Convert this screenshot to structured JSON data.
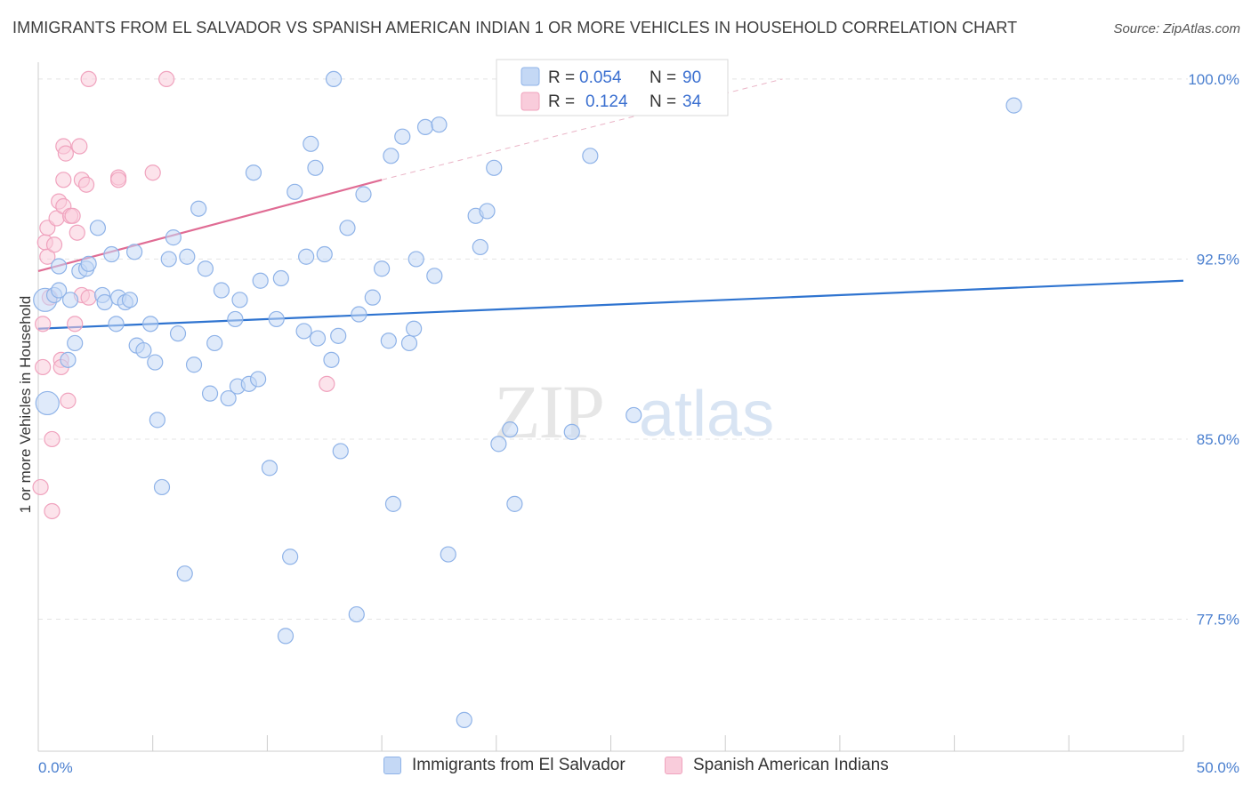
{
  "title": "IMMIGRANTS FROM EL SALVADOR VS SPANISH AMERICAN INDIAN 1 OR MORE VEHICLES IN HOUSEHOLD CORRELATION CHART",
  "source": "Source: ZipAtlas.com",
  "watermark": {
    "zip": "ZIP",
    "atlas": "atlas"
  },
  "chart_data": {
    "type": "scatter",
    "xlabel": "",
    "ylabel": "1 or more Vehicles in Household",
    "xlim": [
      0,
      50
    ],
    "ylim": [
      72.0,
      100.7
    ],
    "x_tick_labels": {
      "left": "0.0%",
      "right": "50.0%"
    },
    "y_ticks": [
      77.5,
      85.0,
      92.5,
      100.0
    ],
    "y_tick_labels": [
      "77.5%",
      "85.0%",
      "92.5%",
      "100.0%"
    ],
    "grid": true,
    "legend": {
      "placement": "top-center",
      "rows": [
        {
          "r_label": "R =",
          "r_value": "0.054",
          "n_label": "N =",
          "n_value": "90"
        },
        {
          "r_label": "R =",
          "r_value": "0.124",
          "n_label": "N =",
          "n_value": "34"
        }
      ]
    },
    "series": [
      {
        "name": "Immigrants from El Salvador",
        "color": "#8fb3e8",
        "fill": "#c4d8f5",
        "trend_color": "#2f74d0",
        "trend": {
          "x": [
            0,
            50
          ],
          "y": [
            89.6,
            91.6
          ]
        },
        "trend_dashed": false,
        "points": [
          [
            0.3,
            90.8
          ],
          [
            0.4,
            86.5
          ],
          [
            0.7,
            91.0
          ],
          [
            0.9,
            92.2
          ],
          [
            0.9,
            91.2
          ],
          [
            1.3,
            88.3
          ],
          [
            1.4,
            90.8
          ],
          [
            1.6,
            89.0
          ],
          [
            1.8,
            92.0
          ],
          [
            2.1,
            92.1
          ],
          [
            2.2,
            92.3
          ],
          [
            2.6,
            93.8
          ],
          [
            2.8,
            91.0
          ],
          [
            2.9,
            90.7
          ],
          [
            3.2,
            92.7
          ],
          [
            3.4,
            89.8
          ],
          [
            3.5,
            90.9
          ],
          [
            3.8,
            90.7
          ],
          [
            4.0,
            90.8
          ],
          [
            4.2,
            92.8
          ],
          [
            4.3,
            88.9
          ],
          [
            4.6,
            88.7
          ],
          [
            4.9,
            89.8
          ],
          [
            5.1,
            88.2
          ],
          [
            5.2,
            85.8
          ],
          [
            5.4,
            83.0
          ],
          [
            5.7,
            92.5
          ],
          [
            5.9,
            93.4
          ],
          [
            6.1,
            89.4
          ],
          [
            6.4,
            79.4
          ],
          [
            6.5,
            92.6
          ],
          [
            6.8,
            88.1
          ],
          [
            7.0,
            94.6
          ],
          [
            7.3,
            92.1
          ],
          [
            7.5,
            86.9
          ],
          [
            7.7,
            89.0
          ],
          [
            8.0,
            91.2
          ],
          [
            8.3,
            86.7
          ],
          [
            8.6,
            90.0
          ],
          [
            8.7,
            87.2
          ],
          [
            8.8,
            90.8
          ],
          [
            9.2,
            87.3
          ],
          [
            9.4,
            96.1
          ],
          [
            9.6,
            87.5
          ],
          [
            9.7,
            91.6
          ],
          [
            10.1,
            83.8
          ],
          [
            10.4,
            90.0
          ],
          [
            10.6,
            91.7
          ],
          [
            10.8,
            76.8
          ],
          [
            11.0,
            80.1
          ],
          [
            11.2,
            95.3
          ],
          [
            11.6,
            89.5
          ],
          [
            11.7,
            92.6
          ],
          [
            11.9,
            97.3
          ],
          [
            12.1,
            96.3
          ],
          [
            12.2,
            89.2
          ],
          [
            12.5,
            92.7
          ],
          [
            12.8,
            88.3
          ],
          [
            12.9,
            100.0
          ],
          [
            13.1,
            89.3
          ],
          [
            13.2,
            84.5
          ],
          [
            13.5,
            93.8
          ],
          [
            13.9,
            77.7
          ],
          [
            14.0,
            90.2
          ],
          [
            14.2,
            95.2
          ],
          [
            14.6,
            90.9
          ],
          [
            15.0,
            92.1
          ],
          [
            15.3,
            89.1
          ],
          [
            15.4,
            96.8
          ],
          [
            15.5,
            82.3
          ],
          [
            15.9,
            97.6
          ],
          [
            16.2,
            89.0
          ],
          [
            16.4,
            89.6
          ],
          [
            16.5,
            92.5
          ],
          [
            16.9,
            98.0
          ],
          [
            17.3,
            91.8
          ],
          [
            17.5,
            98.1
          ],
          [
            17.9,
            80.2
          ],
          [
            18.6,
            73.3
          ],
          [
            19.1,
            94.3
          ],
          [
            19.3,
            93.0
          ],
          [
            19.6,
            94.5
          ],
          [
            19.9,
            96.3
          ],
          [
            20.1,
            84.8
          ],
          [
            20.6,
            85.4
          ],
          [
            20.8,
            82.3
          ],
          [
            23.3,
            85.3
          ],
          [
            24.1,
            96.8
          ],
          [
            26.0,
            86.0
          ],
          [
            42.6,
            98.9
          ]
        ],
        "sizes": {
          "large": [
            [
              0.3,
              90.8
            ],
            [
              0.4,
              86.5
            ]
          ]
        }
      },
      {
        "name": "Spanish American Indians",
        "color": "#f0a3be",
        "fill": "#f9ccdb",
        "trend_color": "#e06c94",
        "trend": {
          "x": [
            0,
            15.0
          ],
          "y": [
            92.0,
            95.8
          ]
        },
        "trend_extension": {
          "x": [
            15.0,
            32.5
          ],
          "y": [
            95.8,
            100.0
          ]
        },
        "trend_dashed": true,
        "points": [
          [
            0.1,
            83.0
          ],
          [
            0.2,
            88.0
          ],
          [
            0.2,
            89.8
          ],
          [
            0.3,
            93.2
          ],
          [
            0.4,
            93.8
          ],
          [
            0.4,
            92.6
          ],
          [
            0.5,
            90.9
          ],
          [
            0.6,
            82.0
          ],
          [
            0.6,
            85.0
          ],
          [
            0.7,
            93.1
          ],
          [
            0.8,
            94.2
          ],
          [
            0.9,
            94.9
          ],
          [
            1.0,
            88.3
          ],
          [
            1.0,
            88.0
          ],
          [
            1.1,
            94.7
          ],
          [
            1.1,
            95.8
          ],
          [
            1.1,
            97.2
          ],
          [
            1.2,
            96.9
          ],
          [
            1.3,
            86.6
          ],
          [
            1.4,
            94.3
          ],
          [
            1.5,
            94.3
          ],
          [
            1.6,
            89.8
          ],
          [
            1.7,
            93.6
          ],
          [
            1.8,
            97.2
          ],
          [
            1.9,
            95.8
          ],
          [
            1.9,
            91.0
          ],
          [
            2.1,
            95.6
          ],
          [
            2.2,
            90.9
          ],
          [
            2.2,
            100.0
          ],
          [
            3.5,
            95.9
          ],
          [
            3.5,
            95.8
          ],
          [
            5.0,
            96.1
          ],
          [
            5.6,
            100.0
          ],
          [
            12.6,
            87.3
          ]
        ]
      }
    ]
  }
}
